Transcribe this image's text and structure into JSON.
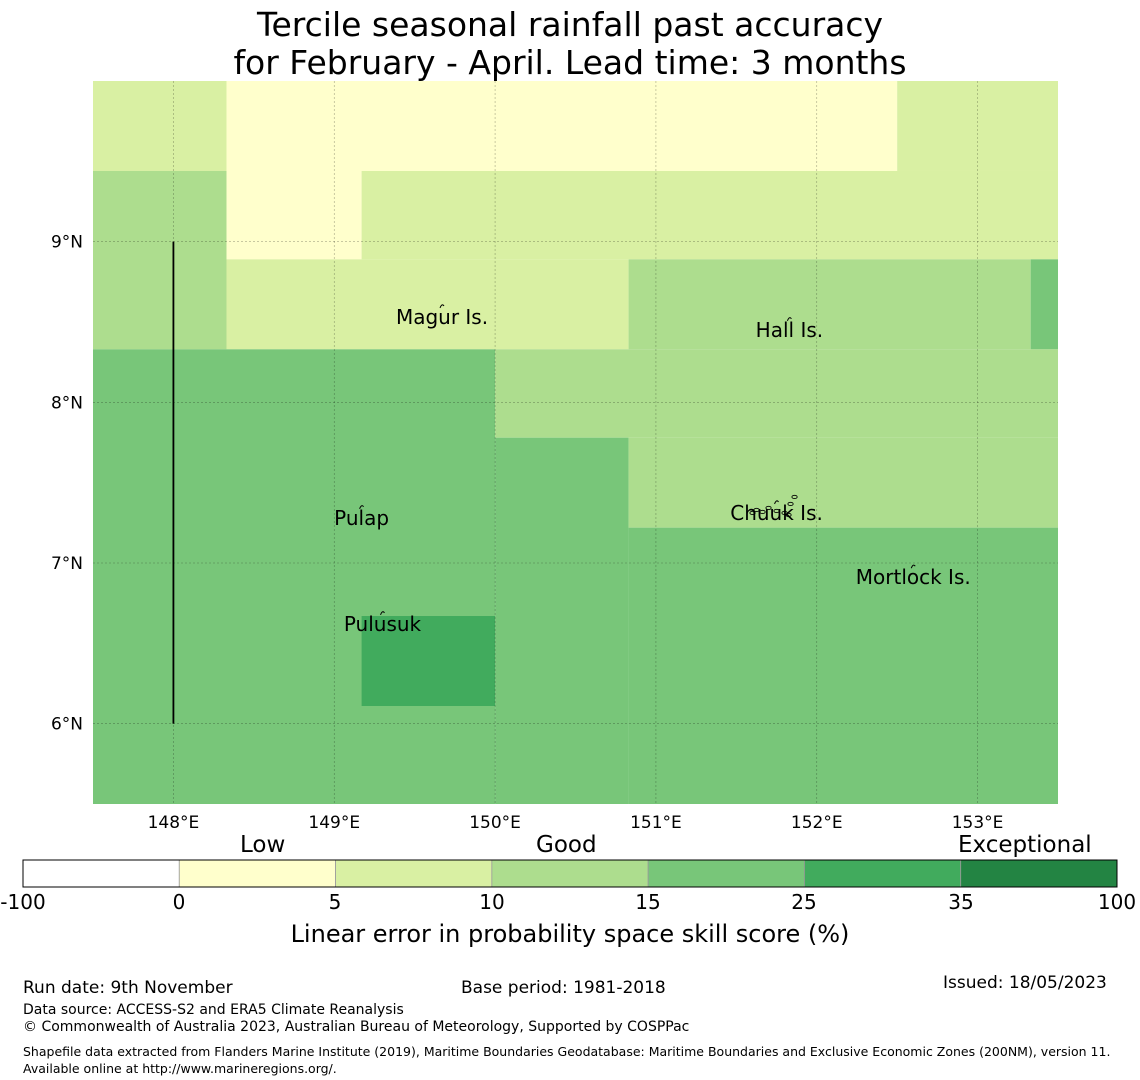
{
  "title": {
    "line1": "Tercile seasonal rainfall past accuracy",
    "line2": "for February - April. Lead time: 3 months"
  },
  "map": {
    "lon_range": [
      147.5,
      153.5
    ],
    "lat_range": [
      5.5,
      10.0
    ],
    "lon_ticks": [
      {
        "value": 148,
        "label": "148°E"
      },
      {
        "value": 149,
        "label": "149°E"
      },
      {
        "value": 150,
        "label": "150°E"
      },
      {
        "value": 151,
        "label": "151°E"
      },
      {
        "value": 152,
        "label": "152°E"
      },
      {
        "value": 153,
        "label": "153°E"
      }
    ],
    "lat_ticks": [
      {
        "value": 9,
        "label": "9°N"
      },
      {
        "value": 8,
        "label": "8°N"
      },
      {
        "value": 7,
        "label": "7°N"
      },
      {
        "value": 6,
        "label": "6°N"
      }
    ],
    "skill_cells": [
      {
        "lon": [
          147.5,
          148.33
        ],
        "lat": [
          9.44,
          10.0
        ],
        "score": 7
      },
      {
        "lon": [
          148.33,
          152.5
        ],
        "lat": [
          9.44,
          10.0
        ],
        "score": 2
      },
      {
        "lon": [
          152.5,
          153.5
        ],
        "lat": [
          9.44,
          10.0
        ],
        "score": 7
      },
      {
        "lon": [
          147.5,
          148.33
        ],
        "lat": [
          8.33,
          9.44
        ],
        "score": 12
      },
      {
        "lon": [
          148.33,
          149.17
        ],
        "lat": [
          8.89,
          9.44
        ],
        "score": 2
      },
      {
        "lon": [
          149.17,
          153.5
        ],
        "lat": [
          8.89,
          9.44
        ],
        "score": 7
      },
      {
        "lon": [
          148.33,
          150.83
        ],
        "lat": [
          8.33,
          8.89
        ],
        "score": 7
      },
      {
        "lon": [
          150.83,
          153.33
        ],
        "lat": [
          8.33,
          8.89
        ],
        "score": 12
      },
      {
        "lon": [
          153.33,
          153.5
        ],
        "lat": [
          8.33,
          8.89
        ],
        "score": 20
      },
      {
        "lon": [
          147.5,
          150.0
        ],
        "lat": [
          5.5,
          8.33
        ],
        "score": 20
      },
      {
        "lon": [
          150.0,
          153.5
        ],
        "lat": [
          7.78,
          8.33
        ],
        "score": 12
      },
      {
        "lon": [
          150.0,
          150.83
        ],
        "lat": [
          5.5,
          7.78
        ],
        "score": 20
      },
      {
        "lon": [
          150.83,
          153.5
        ],
        "lat": [
          7.22,
          7.78
        ],
        "score": 12
      },
      {
        "lon": [
          150.83,
          153.5
        ],
        "lat": [
          5.5,
          7.22
        ],
        "score": 20
      },
      {
        "lon": [
          149.17,
          150.0
        ],
        "lat": [
          6.11,
          6.67
        ],
        "score": 30
      }
    ],
    "boundary_line": {
      "lon": 148.0,
      "lat": [
        6.0,
        9.0
      ]
    },
    "islands": [
      {
        "name": "Magur Is.",
        "lon": 149.67,
        "lat": 8.6
      },
      {
        "name": "Hall Is.",
        "lon": 151.83,
        "lat": 8.52
      },
      {
        "name": "Pulap",
        "lon": 149.17,
        "lat": 7.35
      },
      {
        "name": "Chuuk Is.",
        "lon": 151.75,
        "lat": 7.38
      },
      {
        "name": "Mortlock Is.",
        "lon": 152.6,
        "lat": 6.98
      },
      {
        "name": "Pulusuk",
        "lon": 149.3,
        "lat": 6.69
      }
    ]
  },
  "colorbar": {
    "categories": {
      "low": "Low",
      "good": "Good",
      "exceptional": "Exceptional"
    },
    "segments": [
      {
        "from": -100,
        "to": 0,
        "color": "#ffffff"
      },
      {
        "from": 0,
        "to": 5,
        "color": "#ffffcc"
      },
      {
        "from": 5,
        "to": 10,
        "color": "#d9f0a3"
      },
      {
        "from": 10,
        "to": 15,
        "color": "#addd8e"
      },
      {
        "from": 15,
        "to": 25,
        "color": "#78c679"
      },
      {
        "from": 25,
        "to": 35,
        "color": "#41ab5d"
      },
      {
        "from": 35,
        "to": 100,
        "color": "#238443"
      }
    ],
    "tick_labels": [
      "-100",
      "0",
      "5",
      "10",
      "15",
      "25",
      "35",
      "100"
    ],
    "label": "Linear error in probability space skill score (%)"
  },
  "footer": {
    "run_date": "Run date: 9th November",
    "base_period": "Base period: 1981-2018",
    "issued": "Issued: 18/05/2023",
    "data_source": "Data source: ACCESS-S2 and ERA5 Climate Reanalysis",
    "copyright": "© Commonwealth of Australia 2023, Australian Bureau of Meteorology, Supported by COSPPac",
    "shapefile_note": "Shapefile data extracted from Flanders Marine Institute (2019), Maritime Boundaries Geodatabase: Maritime Boundaries and Exclusive Economic Zones (200NM), version 11. Available online at http://www.marineregions.org/."
  }
}
